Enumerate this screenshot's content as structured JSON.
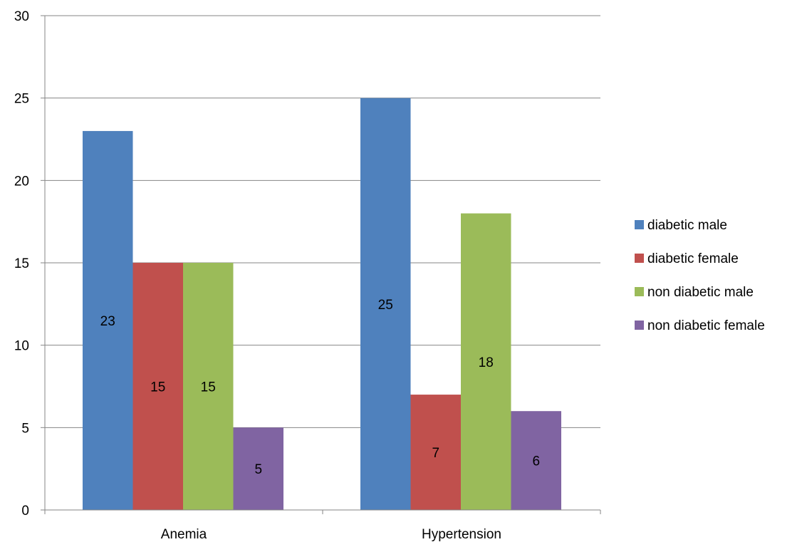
{
  "chart_data": {
    "type": "bar",
    "title": "",
    "xlabel": "",
    "ylabel": "",
    "categories": [
      "Anemia",
      "Hypertension"
    ],
    "series": [
      {
        "name": "diabetic male",
        "values": [
          23,
          25
        ],
        "color": "#4F81BD"
      },
      {
        "name": "diabetic female",
        "values": [
          15,
          7
        ],
        "color": "#C0504D"
      },
      {
        "name": "non diabetic male",
        "values": [
          15,
          18
        ],
        "color": "#9BBB59"
      },
      {
        "name": "non diabetic female",
        "values": [
          5,
          6
        ],
        "color": "#8064A2"
      }
    ],
    "ylim": [
      0,
      30
    ],
    "yticks": [
      0,
      5,
      10,
      15,
      20,
      25,
      30
    ],
    "grid": true,
    "legend_position": "right",
    "data_labels": true
  }
}
